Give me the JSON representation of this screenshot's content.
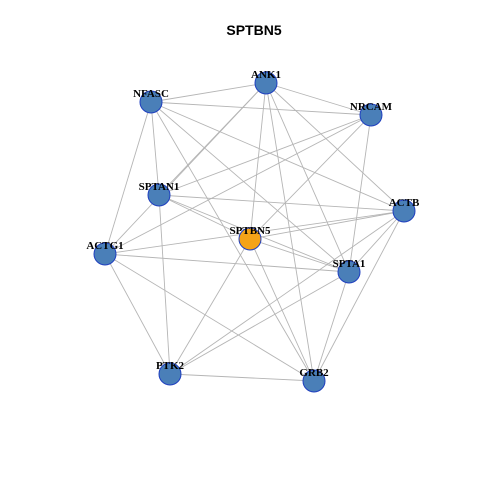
{
  "title": "SPTBN5",
  "colors": {
    "node_default": "#4a7fb8",
    "node_center": "#f5a318",
    "node_border": "#1f3fbf",
    "edge": "#b5b5b5"
  },
  "nodes": [
    {
      "id": "ANK1",
      "label": "ANK1",
      "role": "neighbor"
    },
    {
      "id": "NFASC",
      "label": "NFASC",
      "role": "neighbor"
    },
    {
      "id": "NRCAM",
      "label": "NRCAM",
      "role": "neighbor"
    },
    {
      "id": "SPTAN1",
      "label": "SPTAN1",
      "role": "neighbor"
    },
    {
      "id": "ACTB",
      "label": "ACTB",
      "role": "neighbor"
    },
    {
      "id": "SPTBN5",
      "label": "SPTBN5",
      "role": "center"
    },
    {
      "id": "ACTG1",
      "label": "ACTG1",
      "role": "neighbor"
    },
    {
      "id": "SPTA1",
      "label": "SPTA1",
      "role": "neighbor"
    },
    {
      "id": "PTK2",
      "label": "PTK2",
      "role": "neighbor"
    },
    {
      "id": "GRB2",
      "label": "GRB2",
      "role": "neighbor"
    }
  ],
  "edges": [
    [
      "NFASC",
      "ANK1"
    ],
    [
      "NFASC",
      "NRCAM"
    ],
    [
      "NFASC",
      "SPTAN1"
    ],
    [
      "NFASC",
      "ACTB"
    ],
    [
      "NFASC",
      "ACTG1"
    ],
    [
      "NFASC",
      "SPTA1"
    ],
    [
      "NFASC",
      "GRB2"
    ],
    [
      "ANK1",
      "NRCAM"
    ],
    [
      "ANK1",
      "SPTAN1"
    ],
    [
      "ANK1",
      "ACTB"
    ],
    [
      "ANK1",
      "SPTBN5"
    ],
    [
      "ANK1",
      "SPTA1"
    ],
    [
      "ANK1",
      "ACTG1"
    ],
    [
      "ANK1",
      "GRB2"
    ],
    [
      "NRCAM",
      "SPTAN1"
    ],
    [
      "NRCAM",
      "ACTG1"
    ],
    [
      "NRCAM",
      "SPTBN5"
    ],
    [
      "NRCAM",
      "SPTA1"
    ],
    [
      "SPTAN1",
      "ACTB"
    ],
    [
      "SPTAN1",
      "SPTBN5"
    ],
    [
      "SPTAN1",
      "SPTA1"
    ],
    [
      "SPTAN1",
      "PTK2"
    ],
    [
      "ACTB",
      "SPTBN5"
    ],
    [
      "ACTB",
      "ACTG1"
    ],
    [
      "ACTB",
      "SPTA1"
    ],
    [
      "ACTB",
      "PTK2"
    ],
    [
      "ACTB",
      "GRB2"
    ],
    [
      "SPTBN5",
      "SPTA1"
    ],
    [
      "SPTBN5",
      "PTK2"
    ],
    [
      "SPTBN5",
      "GRB2"
    ],
    [
      "ACTG1",
      "SPTA1"
    ],
    [
      "ACTG1",
      "PTK2"
    ],
    [
      "ACTG1",
      "GRB2"
    ],
    [
      "SPTA1",
      "GRB2"
    ],
    [
      "SPTA1",
      "PTK2"
    ],
    [
      "PTK2",
      "GRB2"
    ]
  ]
}
